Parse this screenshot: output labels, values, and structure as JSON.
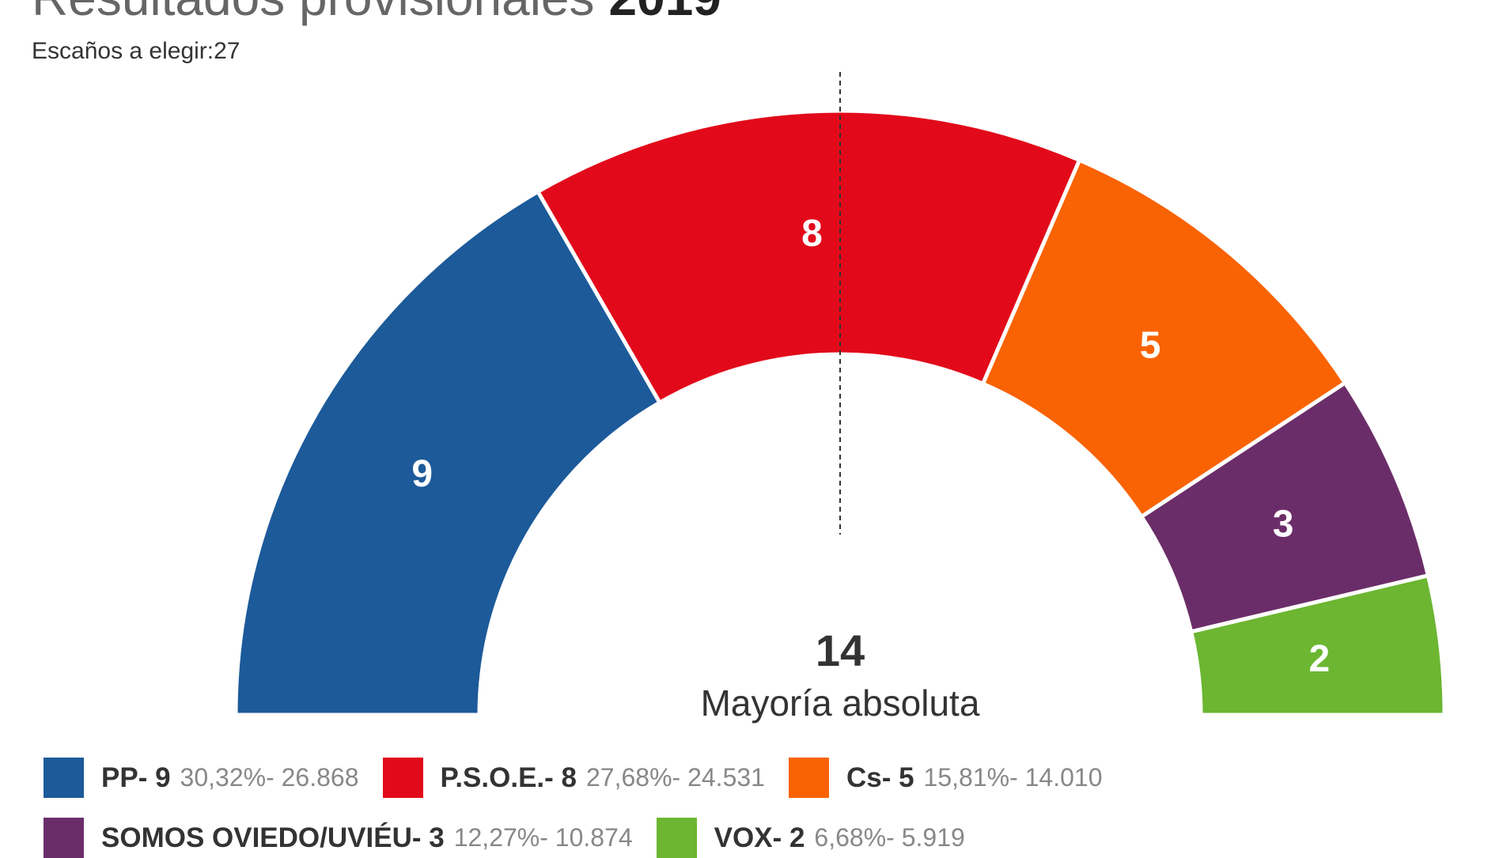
{
  "chart_data": {
    "type": "pie",
    "subtype": "parliament-hemicycle",
    "title": "Resultados provisionales",
    "year": "2019",
    "subtitle": "Escaños a elegir:27",
    "total_seats": 27,
    "majority": {
      "value": "14",
      "label": "Mayoría absoluta"
    },
    "series": [
      {
        "name": "PP",
        "seats": 9,
        "legend_name": "PP- 9",
        "stats": "30,32%- 26.868",
        "percent": 30.32,
        "votes": 26868,
        "color": "#1c5a9a"
      },
      {
        "name": "P.S.O.E.",
        "seats": 8,
        "legend_name": "P.S.O.E.- 8",
        "stats": "27,68%- 24.531",
        "percent": 27.68,
        "votes": 24531,
        "color": "#e20a1a"
      },
      {
        "name": "Cs",
        "seats": 5,
        "legend_name": "Cs- 5",
        "stats": "15,81%- 14.010",
        "percent": 15.81,
        "votes": 14010,
        "color": "#f96303"
      },
      {
        "name": "SOMOS OVIEDO/UVIÉU",
        "seats": 3,
        "legend_name": "SOMOS OVIEDO/UVIÉU- 3",
        "stats": "12,27%- 10.874",
        "percent": 12.27,
        "votes": 10874,
        "color": "#6b2d69"
      },
      {
        "name": "VOX",
        "seats": 2,
        "legend_name": "VOX- 2",
        "stats": "6,68%- 5.919",
        "percent": 6.68,
        "votes": 5919,
        "color": "#6cb632"
      }
    ],
    "legend": "bottom"
  }
}
